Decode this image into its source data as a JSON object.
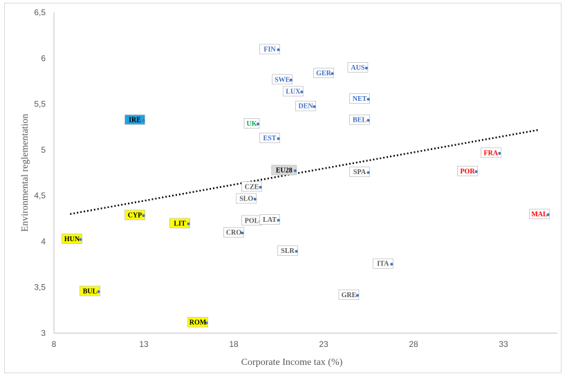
{
  "chart_data": {
    "type": "scatter",
    "xlabel": "Corporate Income tax (%)",
    "ylabel": "Environmental reglementation",
    "xlim": [
      8,
      36
    ],
    "ylim": [
      3,
      6.5
    ],
    "x_ticks": [
      "8",
      "13",
      "18",
      "23",
      "28",
      "33"
    ],
    "y_ticks": [
      "3",
      "3,5",
      "4",
      "4,5",
      "5",
      "5,5",
      "6",
      "6,5"
    ],
    "x_tick_values": [
      8,
      13,
      18,
      23,
      28,
      33
    ],
    "y_tick_values": [
      3,
      3.5,
      4,
      4.5,
      5,
      5.5,
      6,
      6.5
    ],
    "grid": false,
    "trendline": {
      "style": "dotted",
      "color": "#000000",
      "x": [
        8.9,
        35
      ],
      "y": [
        4.3,
        5.22
      ]
    },
    "points": [
      {
        "label": "FIN",
        "x": 20.0,
        "y": 6.1,
        "color": "#4472c4",
        "fill": "none"
      },
      {
        "label": "AUS",
        "x": 24.9,
        "y": 5.9,
        "color": "#4472c4",
        "fill": "none"
      },
      {
        "label": "GER",
        "x": 23.0,
        "y": 5.84,
        "color": "#4472c4",
        "fill": "none"
      },
      {
        "label": "SWE",
        "x": 20.7,
        "y": 5.77,
        "color": "#4472c4",
        "fill": "none"
      },
      {
        "label": "LUX",
        "x": 21.3,
        "y": 5.64,
        "color": "#4472c4",
        "fill": "none"
      },
      {
        "label": "NET",
        "x": 25.0,
        "y": 5.56,
        "color": "#4472c4",
        "fill": "none"
      },
      {
        "label": "DEN",
        "x": 22.0,
        "y": 5.48,
        "color": "#4472c4",
        "fill": "none"
      },
      {
        "label": "BEL",
        "x": 25.0,
        "y": 5.33,
        "color": "#4472c4",
        "fill": "none"
      },
      {
        "label": "IRE",
        "x": 12.5,
        "y": 5.33,
        "color": "#000000",
        "fill": "#1fa3e0"
      },
      {
        "label": "UK",
        "x": 19.0,
        "y": 5.29,
        "color": "#00b050",
        "fill": "none"
      },
      {
        "label": "EST",
        "x": 20.0,
        "y": 5.13,
        "color": "#4472c4",
        "fill": "none"
      },
      {
        "label": "EU28",
        "x": 20.8,
        "y": 4.78,
        "color": "#000000",
        "fill": "#d9d9d9"
      },
      {
        "label": "SPA",
        "x": 25.0,
        "y": 4.76,
        "color": "#595959",
        "fill": "none"
      },
      {
        "label": "FRA",
        "x": 32.3,
        "y": 4.97,
        "color": "#ff0000",
        "fill": "none"
      },
      {
        "label": "POR",
        "x": 31.0,
        "y": 4.77,
        "color": "#ff0000",
        "fill": "none"
      },
      {
        "label": "MAL",
        "x": 35.0,
        "y": 4.3,
        "color": "#ff0000",
        "fill": "none"
      },
      {
        "label": "CZE",
        "x": 19.0,
        "y": 4.6,
        "color": "#595959",
        "fill": "none"
      },
      {
        "label": "SLO",
        "x": 18.7,
        "y": 4.47,
        "color": "#595959",
        "fill": "none"
      },
      {
        "label": "POL",
        "x": 19.0,
        "y": 4.23,
        "color": "#595959",
        "fill": "none"
      },
      {
        "label": "LAT",
        "x": 20.0,
        "y": 4.24,
        "color": "#595959",
        "fill": "none"
      },
      {
        "label": "CRO",
        "x": 18.0,
        "y": 4.1,
        "color": "#595959",
        "fill": "none"
      },
      {
        "label": "SLR",
        "x": 21.0,
        "y": 3.9,
        "color": "#595959",
        "fill": "none"
      },
      {
        "label": "ITA",
        "x": 26.3,
        "y": 3.76,
        "color": "#595959",
        "fill": "none"
      },
      {
        "label": "GRE",
        "x": 24.4,
        "y": 3.42,
        "color": "#595959",
        "fill": "none"
      },
      {
        "label": "CYP",
        "x": 12.5,
        "y": 4.29,
        "color": "#000000",
        "fill": "#ffff00"
      },
      {
        "label": "LIT",
        "x": 15.0,
        "y": 4.2,
        "color": "#000000",
        "fill": "#ffff00"
      },
      {
        "label": "HUN",
        "x": 9.0,
        "y": 4.03,
        "color": "#000000",
        "fill": "#ffff00"
      },
      {
        "label": "BUL",
        "x": 10.0,
        "y": 3.46,
        "color": "#000000",
        "fill": "#ffff00"
      },
      {
        "label": "ROM",
        "x": 16.0,
        "y": 3.12,
        "color": "#000000",
        "fill": "#ffff00"
      }
    ]
  }
}
